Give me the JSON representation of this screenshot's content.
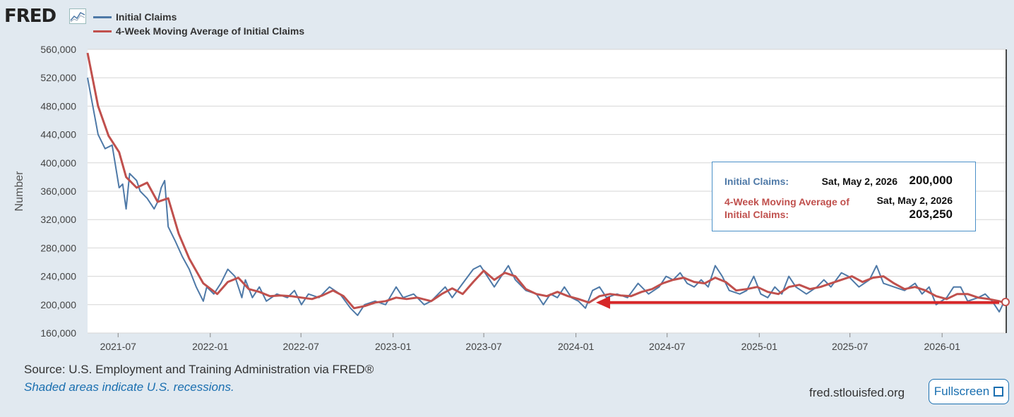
{
  "header": {
    "logo_text": "FRED",
    "logo_icon": "line-chart-icon"
  },
  "legend": [
    {
      "label": "Initial Claims",
      "color": "#4e79a7"
    },
    {
      "label": "4-Week Moving Average of Initial Claims",
      "color": "#c0504d"
    }
  ],
  "tooltip": {
    "series1_label": "Initial Claims:",
    "series1_date": "Sat, May 2, 2026",
    "series1_value": "200,000",
    "series2_label": "4-Week Moving Average of Initial Claims:",
    "series2_date": "Sat, May 2, 2026",
    "series2_value": "203,250"
  },
  "footer": {
    "source": "Source: U.S. Employment and Training Administration via FRED®",
    "note": "Shaded areas indicate U.S. recessions.",
    "site": "fred.stlouisfed.org",
    "fullscreen_label": "Fullscreen"
  },
  "chart_data": {
    "type": "line",
    "xlabel": "",
    "ylabel": "Number",
    "xlim": [
      "2021-05-01",
      "2026-05-09"
    ],
    "ylim": [
      160000,
      560000
    ],
    "yticks": [
      "160,000",
      "200,000",
      "240,000",
      "280,000",
      "320,000",
      "360,000",
      "400,000",
      "440,000",
      "480,000",
      "520,000",
      "560,000"
    ],
    "xticks": [
      "2021-07",
      "2022-01",
      "2022-07",
      "2023-01",
      "2023-07",
      "2024-01",
      "2024-07",
      "2025-01",
      "2025-07",
      "2026-01"
    ],
    "grid": true,
    "annotation": {
      "type": "arrow",
      "color": "#d62728",
      "from": [
        "2026-04-25",
        203000
      ],
      "to": [
        "2024-02-10",
        203000
      ]
    },
    "series": [
      {
        "name": "Initial Claims",
        "color": "#4e79a7",
        "points": [
          [
            "2021-05-01",
            520000
          ],
          [
            "2021-05-22",
            440000
          ],
          [
            "2021-06-05",
            420000
          ],
          [
            "2021-06-19",
            425000
          ],
          [
            "2021-07-03",
            365000
          ],
          [
            "2021-07-10",
            370000
          ],
          [
            "2021-07-17",
            335000
          ],
          [
            "2021-07-24",
            385000
          ],
          [
            "2021-08-07",
            375000
          ],
          [
            "2021-08-14",
            360000
          ],
          [
            "2021-08-28",
            350000
          ],
          [
            "2021-09-11",
            335000
          ],
          [
            "2021-09-18",
            345000
          ],
          [
            "2021-09-25",
            365000
          ],
          [
            "2021-10-02",
            375000
          ],
          [
            "2021-10-09",
            310000
          ],
          [
            "2021-10-23",
            290000
          ],
          [
            "2021-11-06",
            268000
          ],
          [
            "2021-11-20",
            250000
          ],
          [
            "2021-12-04",
            225000
          ],
          [
            "2021-12-18",
            205000
          ],
          [
            "2021-12-25",
            225000
          ],
          [
            "2022-01-08",
            215000
          ],
          [
            "2022-01-22",
            230000
          ],
          [
            "2022-02-05",
            250000
          ],
          [
            "2022-02-19",
            240000
          ],
          [
            "2022-03-05",
            210000
          ],
          [
            "2022-03-12",
            235000
          ],
          [
            "2022-03-26",
            210000
          ],
          [
            "2022-04-09",
            225000
          ],
          [
            "2022-04-23",
            205000
          ],
          [
            "2022-05-14",
            215000
          ],
          [
            "2022-06-04",
            210000
          ],
          [
            "2022-06-18",
            220000
          ],
          [
            "2022-07-02",
            200000
          ],
          [
            "2022-07-16",
            215000
          ],
          [
            "2022-08-06",
            210000
          ],
          [
            "2022-08-27",
            225000
          ],
          [
            "2022-09-17",
            215000
          ],
          [
            "2022-10-08",
            195000
          ],
          [
            "2022-10-22",
            185000
          ],
          [
            "2022-11-05",
            200000
          ],
          [
            "2022-11-26",
            205000
          ],
          [
            "2022-12-17",
            200000
          ],
          [
            "2023-01-07",
            225000
          ],
          [
            "2023-01-21",
            210000
          ],
          [
            "2023-02-11",
            215000
          ],
          [
            "2023-03-04",
            200000
          ],
          [
            "2023-03-18",
            205000
          ],
          [
            "2023-04-01",
            215000
          ],
          [
            "2023-04-15",
            225000
          ],
          [
            "2023-04-29",
            210000
          ],
          [
            "2023-05-20",
            230000
          ],
          [
            "2023-06-10",
            250000
          ],
          [
            "2023-06-24",
            255000
          ],
          [
            "2023-07-08",
            240000
          ],
          [
            "2023-07-22",
            225000
          ],
          [
            "2023-08-05",
            240000
          ],
          [
            "2023-08-19",
            255000
          ],
          [
            "2023-09-02",
            235000
          ],
          [
            "2023-09-23",
            220000
          ],
          [
            "2023-10-14",
            215000
          ],
          [
            "2023-10-28",
            200000
          ],
          [
            "2023-11-11",
            215000
          ],
          [
            "2023-11-25",
            210000
          ],
          [
            "2023-12-09",
            225000
          ],
          [
            "2023-12-23",
            210000
          ],
          [
            "2024-01-06",
            205000
          ],
          [
            "2024-01-20",
            195000
          ],
          [
            "2024-02-03",
            220000
          ],
          [
            "2024-02-17",
            225000
          ],
          [
            "2024-03-02",
            210000
          ],
          [
            "2024-03-23",
            215000
          ],
          [
            "2024-04-13",
            210000
          ],
          [
            "2024-05-04",
            230000
          ],
          [
            "2024-05-25",
            215000
          ],
          [
            "2024-06-15",
            225000
          ],
          [
            "2024-06-29",
            240000
          ],
          [
            "2024-07-13",
            235000
          ],
          [
            "2024-07-27",
            245000
          ],
          [
            "2024-08-10",
            230000
          ],
          [
            "2024-08-24",
            225000
          ],
          [
            "2024-09-07",
            235000
          ],
          [
            "2024-09-21",
            225000
          ],
          [
            "2024-10-05",
            255000
          ],
          [
            "2024-10-19",
            240000
          ],
          [
            "2024-11-02",
            220000
          ],
          [
            "2024-11-23",
            215000
          ],
          [
            "2024-12-07",
            220000
          ],
          [
            "2024-12-21",
            240000
          ],
          [
            "2025-01-04",
            215000
          ],
          [
            "2025-01-18",
            210000
          ],
          [
            "2025-02-01",
            225000
          ],
          [
            "2025-02-15",
            215000
          ],
          [
            "2025-03-01",
            240000
          ],
          [
            "2025-03-15",
            225000
          ],
          [
            "2025-04-05",
            215000
          ],
          [
            "2025-04-26",
            225000
          ],
          [
            "2025-05-10",
            235000
          ],
          [
            "2025-05-24",
            225000
          ],
          [
            "2025-06-14",
            245000
          ],
          [
            "2025-06-28",
            240000
          ],
          [
            "2025-07-19",
            225000
          ],
          [
            "2025-08-09",
            235000
          ],
          [
            "2025-08-23",
            255000
          ],
          [
            "2025-09-06",
            230000
          ],
          [
            "2025-09-27",
            225000
          ],
          [
            "2025-10-18",
            220000
          ],
          [
            "2025-11-08",
            230000
          ],
          [
            "2025-11-22",
            215000
          ],
          [
            "2025-12-06",
            225000
          ],
          [
            "2025-12-20",
            200000
          ],
          [
            "2026-01-10",
            210000
          ],
          [
            "2026-01-24",
            225000
          ],
          [
            "2026-02-07",
            225000
          ],
          [
            "2026-02-21",
            205000
          ],
          [
            "2026-03-14",
            210000
          ],
          [
            "2026-03-28",
            215000
          ],
          [
            "2026-04-11",
            205000
          ],
          [
            "2026-04-25",
            190000
          ],
          [
            "2026-05-02",
            200000
          ]
        ]
      },
      {
        "name": "4-Week Moving Average of Initial Claims",
        "color": "#c0504d",
        "points": [
          [
            "2021-05-01",
            555000
          ],
          [
            "2021-05-22",
            480000
          ],
          [
            "2021-06-12",
            438000
          ],
          [
            "2021-07-03",
            415000
          ],
          [
            "2021-07-17",
            380000
          ],
          [
            "2021-08-07",
            365000
          ],
          [
            "2021-08-28",
            372000
          ],
          [
            "2021-09-18",
            345000
          ],
          [
            "2021-10-09",
            350000
          ],
          [
            "2021-10-30",
            300000
          ],
          [
            "2021-11-20",
            265000
          ],
          [
            "2021-12-18",
            230000
          ],
          [
            "2022-01-15",
            215000
          ],
          [
            "2022-02-05",
            232000
          ],
          [
            "2022-02-26",
            238000
          ],
          [
            "2022-03-19",
            222000
          ],
          [
            "2022-04-09",
            218000
          ],
          [
            "2022-04-30",
            212000
          ],
          [
            "2022-05-21",
            213000
          ],
          [
            "2022-06-11",
            212000
          ],
          [
            "2022-07-02",
            210000
          ],
          [
            "2022-07-23",
            208000
          ],
          [
            "2022-08-13",
            213000
          ],
          [
            "2022-09-03",
            220000
          ],
          [
            "2022-09-24",
            212000
          ],
          [
            "2022-10-15",
            195000
          ],
          [
            "2022-11-05",
            198000
          ],
          [
            "2022-11-26",
            203000
          ],
          [
            "2022-12-17",
            205000
          ],
          [
            "2023-01-07",
            210000
          ],
          [
            "2023-01-28",
            208000
          ],
          [
            "2023-02-18",
            210000
          ],
          [
            "2023-03-18",
            205000
          ],
          [
            "2023-04-08",
            215000
          ],
          [
            "2023-04-29",
            223000
          ],
          [
            "2023-05-20",
            215000
          ],
          [
            "2023-06-10",
            232000
          ],
          [
            "2023-07-01",
            248000
          ],
          [
            "2023-07-22",
            235000
          ],
          [
            "2023-08-12",
            245000
          ],
          [
            "2023-09-02",
            240000
          ],
          [
            "2023-09-23",
            222000
          ],
          [
            "2023-10-14",
            215000
          ],
          [
            "2023-11-04",
            212000
          ],
          [
            "2023-11-25",
            218000
          ],
          [
            "2023-12-16",
            212000
          ],
          [
            "2024-01-06",
            208000
          ],
          [
            "2024-01-27",
            203000
          ],
          [
            "2024-02-17",
            212000
          ],
          [
            "2024-03-09",
            215000
          ],
          [
            "2024-03-30",
            213000
          ],
          [
            "2024-04-20",
            212000
          ],
          [
            "2024-05-11",
            218000
          ],
          [
            "2024-06-01",
            222000
          ],
          [
            "2024-06-22",
            230000
          ],
          [
            "2024-07-13",
            235000
          ],
          [
            "2024-08-03",
            238000
          ],
          [
            "2024-08-24",
            232000
          ],
          [
            "2024-09-14",
            230000
          ],
          [
            "2024-10-05",
            238000
          ],
          [
            "2024-10-26",
            232000
          ],
          [
            "2024-11-16",
            220000
          ],
          [
            "2024-12-07",
            222000
          ],
          [
            "2024-12-28",
            225000
          ],
          [
            "2025-01-18",
            218000
          ],
          [
            "2025-02-08",
            215000
          ],
          [
            "2025-03-01",
            225000
          ],
          [
            "2025-03-22",
            228000
          ],
          [
            "2025-04-12",
            222000
          ],
          [
            "2025-05-03",
            225000
          ],
          [
            "2025-05-24",
            230000
          ],
          [
            "2025-06-14",
            235000
          ],
          [
            "2025-07-05",
            240000
          ],
          [
            "2025-07-26",
            232000
          ],
          [
            "2025-08-16",
            238000
          ],
          [
            "2025-09-06",
            240000
          ],
          [
            "2025-09-27",
            230000
          ],
          [
            "2025-10-18",
            222000
          ],
          [
            "2025-11-08",
            225000
          ],
          [
            "2025-11-29",
            220000
          ],
          [
            "2025-12-20",
            212000
          ],
          [
            "2026-01-10",
            208000
          ],
          [
            "2026-01-31",
            215000
          ],
          [
            "2026-02-21",
            215000
          ],
          [
            "2026-03-14",
            210000
          ],
          [
            "2026-04-04",
            208000
          ],
          [
            "2026-04-25",
            205000
          ],
          [
            "2026-05-02",
            203250
          ]
        ]
      }
    ]
  }
}
